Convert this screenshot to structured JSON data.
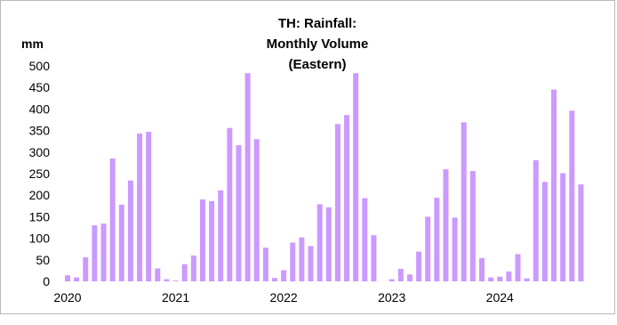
{
  "chart_data": {
    "type": "bar",
    "title": [
      "TH: Rainfall:",
      "Monthly Volume",
      "(Eastern)"
    ],
    "ylabel": "mm",
    "xlabel": "",
    "ylim": [
      0,
      500
    ],
    "yticks": [
      0,
      50,
      100,
      150,
      200,
      250,
      300,
      350,
      400,
      450,
      500
    ],
    "xtick_labels": [
      "2020",
      "2021",
      "2022",
      "2023",
      "2024"
    ],
    "bar_color": "#cc99ff",
    "grid": false,
    "legend": "none",
    "start_month": "2020-01",
    "series": [
      {
        "values": [
          14,
          9,
          56,
          130,
          134,
          285,
          178,
          234,
          343,
          347,
          30,
          5,
          2,
          40,
          60,
          190,
          186,
          211,
          356,
          316,
          483,
          330,
          78,
          8,
          26,
          90,
          102,
          82,
          179,
          172,
          365,
          386,
          483,
          193,
          107,
          0,
          5,
          29,
          16,
          69,
          150,
          194,
          260,
          148,
          369,
          256,
          54,
          9,
          11,
          23,
          63,
          7,
          281,
          231,
          445,
          251,
          396,
          225
        ]
      }
    ]
  }
}
